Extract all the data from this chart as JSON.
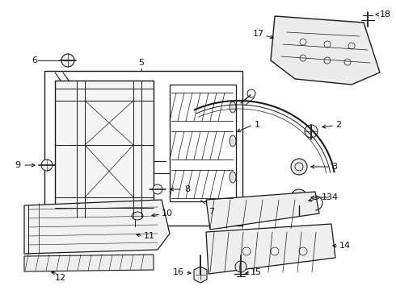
{
  "bg_color": "#ffffff",
  "fig_width": 4.9,
  "fig_height": 3.6,
  "dpi": 100,
  "line_color": "#1a1a1a",
  "text_color": "#111111",
  "label_fontsize": 8.0,
  "arrow_color": "#111111"
}
